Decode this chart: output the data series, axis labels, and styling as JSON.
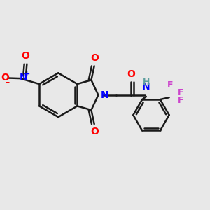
{
  "bg_color": "#e8e8e8",
  "bond_color": "#1a1a1a",
  "bond_width": 1.8,
  "figsize": [
    3.0,
    3.0
  ],
  "dpi": 100,
  "xlim": [
    0.0,
    10.0
  ],
  "ylim": [
    0.0,
    10.0
  ]
}
